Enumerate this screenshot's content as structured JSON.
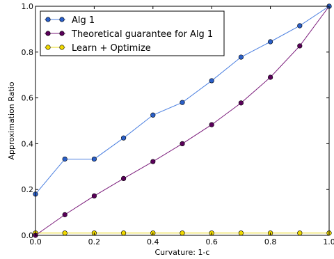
{
  "chart_data": {
    "type": "line",
    "title": "",
    "xlabel": "Curvature: 1-c",
    "ylabel": "Approximation Ratio",
    "xlim": [
      0.0,
      1.0
    ],
    "ylim": [
      0.0,
      1.0
    ],
    "xticks": [
      "0.0",
      "0.2",
      "0.4",
      "0.6",
      "0.8",
      "1.0"
    ],
    "yticks": [
      "0.0",
      "0.2",
      "0.4",
      "0.6",
      "0.8",
      "1.0"
    ],
    "grid": false,
    "legend_position": "top-left",
    "x": [
      0.0,
      0.1,
      0.2,
      0.3,
      0.4,
      0.5,
      0.6,
      0.7,
      0.8,
      0.9,
      1.0
    ],
    "series": [
      {
        "name": "Alg 1",
        "color": "#4a7fe0",
        "marker_color": "#2a5fc8",
        "values": [
          0.18,
          0.333,
          0.333,
          0.425,
          0.525,
          0.58,
          0.675,
          0.778,
          0.845,
          0.915,
          1.0
        ]
      },
      {
        "name": "Theoretical guarantee for Alg 1",
        "color": "#7a1a7a",
        "marker_color": "#5a005a",
        "values": [
          0.0,
          0.09,
          0.172,
          0.248,
          0.322,
          0.4,
          0.483,
          0.578,
          0.69,
          0.827,
          1.0
        ]
      },
      {
        "name": "Learn + Optimize",
        "color": "#e8d81a",
        "marker_color": "#f0d800",
        "values": [
          0.01,
          0.01,
          0.01,
          0.01,
          0.01,
          0.01,
          0.01,
          0.01,
          0.01,
          0.01,
          0.01
        ]
      }
    ]
  }
}
